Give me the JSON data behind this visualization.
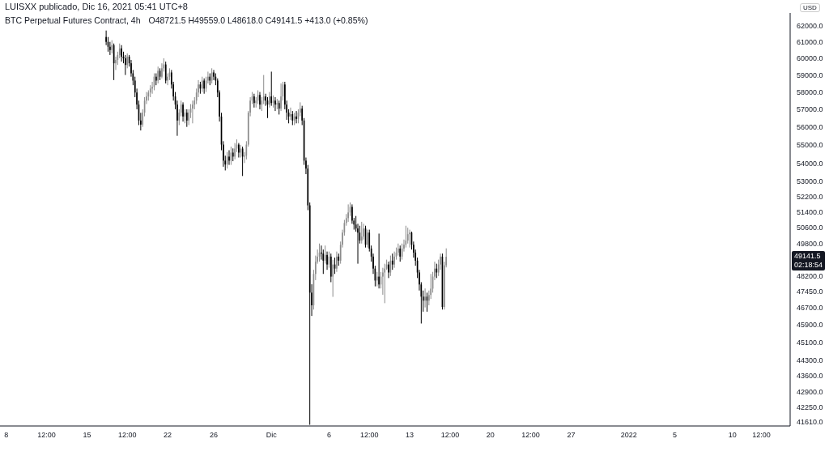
{
  "chart_data": {
    "type": "candlestick",
    "title": "BTC Perpetual Futures Contract, 4h",
    "ylabel": "USD",
    "log": true,
    "annotations": [
      "LUISXX publicado, Dic 16, 2021 05:41 UTC+8",
      "O48721.5 H49559.0 L48618.0 C49141.5 +413.0 (+0.85%)",
      "49141.5",
      "02:18:54"
    ],
    "xlim": [
      "2021-11-07T11:00",
      "2022-01-15T00:00"
    ],
    "xticks": [
      {
        "value": "2021-11-08",
        "label": "8"
      },
      {
        "value": "2021-11-11T12:00",
        "label": "12:00"
      },
      {
        "value": "2021-11-15",
        "label": "15"
      },
      {
        "value": "2021-11-18T12:00",
        "label": "12:00"
      },
      {
        "value": "2021-11-22",
        "label": "22"
      },
      {
        "value": "2021-11-26",
        "label": "26"
      },
      {
        "value": "2021-12-01",
        "label": "Dic"
      },
      {
        "value": "2021-12-06",
        "label": "6"
      },
      {
        "value": "2021-12-09T12:00",
        "label": "12:00"
      },
      {
        "value": "2021-12-13",
        "label": "13"
      },
      {
        "value": "2021-12-16T12:00",
        "label": "12:00"
      },
      {
        "value": "2021-12-20",
        "label": "20"
      },
      {
        "value": "2021-12-23T12:00",
        "label": "12:00"
      },
      {
        "value": "2021-12-27",
        "label": "27"
      },
      {
        "value": "2022-01-01",
        "label": "2022"
      },
      {
        "value": "2022-01-05",
        "label": "5"
      },
      {
        "value": "2022-01-10",
        "label": "10"
      },
      {
        "value": "2022-01-12T12:00",
        "label": "12:00"
      }
    ],
    "ylim": [
      41450,
      62800
    ],
    "yticks": [
      {
        "value": 62000,
        "label": "62000.0"
      },
      {
        "value": 61000,
        "label": "61000.0"
      },
      {
        "value": 60000,
        "label": "60000.0"
      },
      {
        "value": 59000,
        "label": "59000.0"
      },
      {
        "value": 58000,
        "label": "58000.0"
      },
      {
        "value": 57000,
        "label": "57000.0"
      },
      {
        "value": 56000,
        "label": "56000.0"
      },
      {
        "value": 55000,
        "label": "55000.0"
      },
      {
        "value": 54000,
        "label": "54000.0"
      },
      {
        "value": 53000,
        "label": "53000.0"
      },
      {
        "value": 52200,
        "label": "52200.0"
      },
      {
        "value": 51400,
        "label": "51400.0"
      },
      {
        "value": 50600,
        "label": "50600.0"
      },
      {
        "value": 49800,
        "label": "49800.0"
      },
      {
        "value": 48200,
        "label": "48200.0"
      },
      {
        "value": 47450,
        "label": "47450.0"
      },
      {
        "value": 46700,
        "label": "46700.0"
      },
      {
        "value": 45900,
        "label": "45900.0"
      },
      {
        "value": 45100,
        "label": "45100.0"
      },
      {
        "value": 44300,
        "label": "44300.0"
      },
      {
        "value": 43600,
        "label": "43600.0"
      },
      {
        "value": 42900,
        "label": "42900.0"
      },
      {
        "value": 42250,
        "label": "42250.0"
      },
      {
        "value": 41610,
        "label": "41610.0"
      }
    ],
    "series": [
      {
        "color": "#8c8c8c",
        "x": [
          "2021-11-17T04:00",
          "2021-11-17T12:00",
          "2021-11-17T16:00",
          "2021-11-17T20:00",
          "2021-11-18T12:00",
          "2021-11-19T20:00",
          "2021-11-20T00:00",
          "2021-11-20T04:00",
          "2021-11-20T08:00",
          "2021-11-20T12:00",
          "2021-11-20T16:00",
          "2021-11-20T20:00",
          "2021-11-21T04:00",
          "2021-11-21T12:00",
          "2021-11-21T16:00",
          "2021-11-22T00:00",
          "2021-11-22T04:00",
          "2021-11-23T00:00",
          "2021-11-23T04:00",
          "2021-11-23T12:00",
          "2021-11-23T20:00",
          "2021-11-24T00:00",
          "2021-11-24T04:00",
          "2021-11-24T08:00",
          "2021-11-24T12:00",
          "2021-11-24T16:00",
          "2021-11-25T00:00",
          "2021-11-25T08:00",
          "2021-11-25T12:00",
          "2021-11-25T20:00",
          "2021-11-27T04:00",
          "2021-11-27T12:00",
          "2021-11-27T20:00",
          "2021-11-28T00:00",
          "2021-11-28T08:00",
          "2021-11-28T16:00",
          "2021-11-28T20:00",
          "2021-11-29T00:00",
          "2021-11-29T04:00",
          "2021-11-29T08:00",
          "2021-11-29T16:00",
          "2021-11-29T20:00",
          "2021-11-30T04:00",
          "2021-11-30T08:00",
          "2021-11-30T20:00",
          "2021-12-01T04:00",
          "2021-12-01T12:00",
          "2021-12-01T20:00",
          "2021-12-02T00:00",
          "2021-12-02T16:00",
          "2021-12-03T00:00",
          "2021-12-03T08:00",
          "2021-12-03T12:00",
          "2021-12-04T16:00",
          "2021-12-04T20:00",
          "2021-12-05T00:00",
          "2021-12-05T04:00",
          "2021-12-05T16:00",
          "2021-12-06T00:00",
          "2021-12-06T08:00",
          "2021-12-06T16:00",
          "2021-12-07T00:00",
          "2021-12-07T04:00",
          "2021-12-07T08:00",
          "2021-12-07T12:00",
          "2021-12-07T16:00",
          "2021-12-07T20:00",
          "2021-12-08T20:00",
          "2021-12-09T00:00",
          "2021-12-09T08:00",
          "2021-12-10T04:00",
          "2021-12-10T12:00",
          "2021-12-10T16:00",
          "2021-12-10T20:00",
          "2021-12-11T00:00",
          "2021-12-11T08:00",
          "2021-12-11T16:00",
          "2021-12-11T20:00",
          "2021-12-12T00:00",
          "2021-12-12T08:00",
          "2021-12-12T12:00",
          "2021-12-12T16:00",
          "2021-12-12T20:00",
          "2021-12-13T00:00",
          "2021-12-14T08:00",
          "2021-12-14T16:00",
          "2021-12-14T20:00",
          "2021-12-15T00:00",
          "2021-12-15T04:00",
          "2021-12-15T12:00",
          "2021-12-15T16:00",
          "2021-12-16T00:00",
          "2021-12-16T04:00"
        ],
        "ohlc": [
          [
            60500,
            61100,
            60300,
            60800
          ],
          [
            59700,
            60100,
            59300,
            59900
          ],
          [
            59900,
            60400,
            59600,
            60200
          ],
          [
            60200,
            60900,
            60000,
            60600
          ],
          [
            59600,
            60300,
            59400,
            60100
          ],
          [
            56130,
            57000,
            56000,
            56810
          ],
          [
            56810,
            57700,
            56600,
            57500
          ],
          [
            57500,
            58000,
            57300,
            57740
          ],
          [
            57740,
            58100,
            57500,
            57970
          ],
          [
            57970,
            58400,
            57700,
            58200
          ],
          [
            58200,
            58600,
            57900,
            58300
          ],
          [
            58300,
            59100,
            58100,
            58900
          ],
          [
            58670,
            59500,
            58500,
            59250
          ],
          [
            58900,
            59700,
            58800,
            59400
          ],
          [
            59400,
            60000,
            59200,
            59630
          ],
          [
            58670,
            59100,
            58400,
            58900
          ],
          [
            58900,
            59400,
            58700,
            59150
          ],
          [
            56360,
            57000,
            56100,
            56810
          ],
          [
            56810,
            57500,
            56600,
            57270
          ],
          [
            56590,
            57000,
            56200,
            56810
          ],
          [
            56360,
            57000,
            56100,
            56810
          ],
          [
            56810,
            57300,
            56500,
            57040
          ],
          [
            57040,
            57500,
            56200,
            57270
          ],
          [
            57270,
            57700,
            57000,
            57500
          ],
          [
            57500,
            58200,
            57300,
            57970
          ],
          [
            57970,
            58700,
            57700,
            58440
          ],
          [
            58200,
            58900,
            58000,
            58670
          ],
          [
            58200,
            58900,
            58000,
            58670
          ],
          [
            58670,
            59200,
            58500,
            58900
          ],
          [
            58670,
            59400,
            58500,
            59150
          ],
          [
            53920,
            54600,
            53700,
            54350
          ],
          [
            54130,
            54900,
            53900,
            54570
          ],
          [
            54350,
            55100,
            54200,
            54790
          ],
          [
            54790,
            55300,
            54600,
            55010
          ],
          [
            54570,
            55000,
            54300,
            54790
          ],
          [
            54350,
            54600,
            54000,
            54400
          ],
          [
            54400,
            55200,
            54200,
            55010
          ],
          [
            55010,
            56900,
            54900,
            56810
          ],
          [
            56810,
            57700,
            56600,
            57500
          ],
          [
            57500,
            58000,
            57300,
            57740
          ],
          [
            57360,
            57700,
            57100,
            57500
          ],
          [
            57500,
            58100,
            57300,
            57830
          ],
          [
            57270,
            57700,
            56900,
            57500
          ],
          [
            57500,
            59000,
            57300,
            57740
          ],
          [
            57270,
            58000,
            57100,
            57740
          ],
          [
            57360,
            57800,
            57100,
            57500
          ],
          [
            57270,
            57600,
            57000,
            57360
          ],
          [
            57040,
            58500,
            56900,
            57740
          ],
          [
            57740,
            58600,
            57500,
            58440
          ],
          [
            56590,
            57100,
            56400,
            56720
          ],
          [
            56360,
            56800,
            56100,
            56590
          ],
          [
            56450,
            57000,
            56200,
            56810
          ],
          [
            56810,
            57400,
            56600,
            57040
          ],
          [
            46800,
            48500,
            46600,
            48300
          ],
          [
            48300,
            49200,
            48000,
            48900
          ],
          [
            48900,
            49500,
            48800,
            49150
          ],
          [
            49150,
            49800,
            48900,
            49350
          ],
          [
            48950,
            49700,
            48800,
            49230
          ],
          [
            48760,
            49400,
            48600,
            49150
          ],
          [
            48170,
            49000,
            47200,
            48760
          ],
          [
            48560,
            49400,
            48400,
            49150
          ],
          [
            48950,
            49900,
            48800,
            49740
          ],
          [
            49740,
            50500,
            49600,
            50350
          ],
          [
            50350,
            51000,
            50200,
            50840
          ],
          [
            50840,
            51300,
            50700,
            51090
          ],
          [
            51090,
            51800,
            50900,
            51380
          ],
          [
            51380,
            51900,
            51200,
            51670
          ],
          [
            49950,
            50900,
            49800,
            50150
          ],
          [
            50150,
            50800,
            50000,
            50560
          ],
          [
            49740,
            50500,
            49600,
            50350
          ],
          [
            47980,
            48400,
            47700,
            48170
          ],
          [
            47790,
            48400,
            47600,
            48170
          ],
          [
            48170,
            48600,
            47300,
            48370
          ],
          [
            48370,
            48800,
            46900,
            48560
          ],
          [
            48560,
            49000,
            48500,
            48760
          ],
          [
            48370,
            49200,
            48200,
            48950
          ],
          [
            48760,
            49400,
            48600,
            49150
          ],
          [
            49150,
            49600,
            49000,
            49350
          ],
          [
            49350,
            49800,
            49200,
            49550
          ],
          [
            49150,
            49800,
            49000,
            49550
          ],
          [
            49550,
            50000,
            49400,
            49740
          ],
          [
            49740,
            50700,
            49600,
            49950
          ],
          [
            49950,
            50600,
            49800,
            50270
          ],
          [
            50270,
            50500,
            49600,
            50350
          ],
          [
            47020,
            47600,
            46700,
            47210
          ],
          [
            47020,
            47500,
            46800,
            47290
          ],
          [
            47290,
            48300,
            47100,
            47590
          ],
          [
            47590,
            48400,
            47400,
            48170
          ],
          [
            48170,
            48900,
            48000,
            48560
          ],
          [
            48370,
            49000,
            48200,
            48760
          ],
          [
            48760,
            49300,
            48500,
            49150
          ],
          [
            46720,
            48900,
            46600,
            48721.5
          ],
          [
            48721.5,
            49559.0,
            48618.0,
            49141.5
          ]
        ]
      },
      {
        "color": "#000000",
        "x": [
          "2021-11-16T16:00",
          "2021-11-16T20:00",
          "2021-11-17T00:00",
          "2021-11-17T08:00",
          "2021-11-18T00:00",
          "2021-11-18T04:00",
          "2021-11-18T08:00",
          "2021-11-18T16:00",
          "2021-11-18T20:00",
          "2021-11-19T00:00",
          "2021-11-19T04:00",
          "2021-11-19T08:00",
          "2021-11-19T12:00",
          "2021-11-19T16:00",
          "2021-11-21T00:00",
          "2021-11-21T08:00",
          "2021-11-21T20:00",
          "2021-11-22T08:00",
          "2021-11-22T12:00",
          "2021-11-22T16:00",
          "2021-11-22T20:00",
          "2021-11-23T08:00",
          "2021-11-23T16:00",
          "2021-11-24T20:00",
          "2021-11-25T04:00",
          "2021-11-25T16:00",
          "2021-11-26T00:00",
          "2021-11-26T04:00",
          "2021-11-26T08:00",
          "2021-11-26T12:00",
          "2021-11-26T16:00",
          "2021-11-26T20:00",
          "2021-11-27T00:00",
          "2021-11-27T08:00",
          "2021-11-27T16:00",
          "2021-11-28T04:00",
          "2021-11-28T12:00",
          "2021-11-29T12:00",
          "2021-11-30T00:00",
          "2021-11-30T12:00",
          "2021-11-30T16:00",
          "2021-12-01T00:00",
          "2021-12-01T08:00",
          "2021-12-01T16:00",
          "2021-12-02T04:00",
          "2021-12-02T08:00",
          "2021-12-02T12:00",
          "2021-12-02T20:00",
          "2021-12-03T04:00",
          "2021-12-03T16:00",
          "2021-12-03T20:00",
          "2021-12-04T00:00",
          "2021-12-04T04:00",
          "2021-12-04T08:00",
          "2021-12-04T12:00",
          "2021-12-05T08:00",
          "2021-12-05T12:00",
          "2021-12-05T20:00",
          "2021-12-06T04:00",
          "2021-12-06T12:00",
          "2021-12-06T20:00",
          "2021-12-08T00:00",
          "2021-12-08T04:00",
          "2021-12-08T08:00",
          "2021-12-08T12:00",
          "2021-12-08T16:00",
          "2021-12-09T04:00",
          "2021-12-09T12:00",
          "2021-12-09T16:00",
          "2021-12-09T20:00",
          "2021-12-10T00:00",
          "2021-12-10T08:00",
          "2021-12-11T04:00",
          "2021-12-11T12:00",
          "2021-12-12T04:00",
          "2021-12-13T04:00",
          "2021-12-13T08:00",
          "2021-12-13T12:00",
          "2021-12-13T16:00",
          "2021-12-13T20:00",
          "2021-12-14T00:00",
          "2021-12-14T04:00",
          "2021-12-14T12:00",
          "2021-12-15T08:00",
          "2021-12-15T20:00"
        ],
        "ohlc": [
          [
            61300,
            61700,
            60800,
            61000
          ],
          [
            61000,
            61300,
            60400,
            60700
          ],
          [
            60700,
            61000,
            60200,
            60500
          ],
          [
            60800,
            60900,
            58700,
            59700
          ],
          [
            60600,
            60800,
            59800,
            60100
          ],
          [
            60100,
            60400,
            59700,
            60000
          ],
          [
            60000,
            60200,
            59000,
            59600
          ],
          [
            60100,
            60200,
            59500,
            59700
          ],
          [
            59700,
            59900,
            58900,
            59100
          ],
          [
            59100,
            59300,
            58400,
            58670
          ],
          [
            58670,
            58900,
            57700,
            57970
          ],
          [
            57970,
            58200,
            57000,
            57270
          ],
          [
            57270,
            57500,
            56100,
            56360
          ],
          [
            56360,
            56800,
            55800,
            56130
          ],
          [
            58900,
            59100,
            58400,
            58670
          ],
          [
            59250,
            59400,
            58700,
            58900
          ],
          [
            59630,
            59800,
            58500,
            58670
          ],
          [
            59150,
            59300,
            58200,
            58440
          ],
          [
            58440,
            58600,
            57500,
            57740
          ],
          [
            57740,
            58000,
            57000,
            57270
          ],
          [
            57270,
            57500,
            55500,
            56360
          ],
          [
            57270,
            57400,
            56300,
            56590
          ],
          [
            56810,
            57000,
            56000,
            56360
          ],
          [
            58440,
            58600,
            57900,
            58200
          ],
          [
            58670,
            58800,
            57900,
            58200
          ],
          [
            58900,
            59100,
            58400,
            58670
          ],
          [
            59150,
            59300,
            58700,
            58900
          ],
          [
            58900,
            59100,
            58400,
            58670
          ],
          [
            58670,
            58800,
            57700,
            57970
          ],
          [
            57970,
            58100,
            56300,
            56590
          ],
          [
            56590,
            56800,
            54700,
            55010
          ],
          [
            55010,
            55200,
            53800,
            54130
          ],
          [
            54130,
            54400,
            53600,
            53920
          ],
          [
            54350,
            54700,
            53900,
            54130
          ],
          [
            54570,
            54800,
            54100,
            54350
          ],
          [
            55010,
            55100,
            54300,
            54570
          ],
          [
            54790,
            54900,
            53300,
            54350
          ],
          [
            57740,
            57900,
            57100,
            57360
          ],
          [
            57830,
            58000,
            57000,
            57270
          ],
          [
            57740,
            57900,
            57200,
            57500
          ],
          [
            57500,
            57700,
            56500,
            57270
          ],
          [
            57740,
            59200,
            57200,
            57360
          ],
          [
            57500,
            57700,
            56900,
            57270
          ],
          [
            57360,
            57500,
            56700,
            57040
          ],
          [
            58440,
            58600,
            57000,
            57270
          ],
          [
            57270,
            57500,
            56400,
            56810
          ],
          [
            56810,
            57000,
            56200,
            56590
          ],
          [
            56720,
            56900,
            56100,
            56360
          ],
          [
            56590,
            56900,
            56200,
            56450
          ],
          [
            57040,
            57200,
            56100,
            56360
          ],
          [
            56360,
            56500,
            53900,
            54130
          ],
          [
            54130,
            54300,
            53400,
            53700
          ],
          [
            53700,
            53900,
            51500,
            51750
          ],
          [
            51750,
            51900,
            41500,
            47400
          ],
          [
            47400,
            47800,
            46300,
            46800
          ],
          [
            49350,
            49700,
            49000,
            49300
          ],
          [
            49300,
            49500,
            48300,
            48950
          ],
          [
            49230,
            49400,
            48500,
            48760
          ],
          [
            49150,
            49300,
            47900,
            48170
          ],
          [
            48760,
            49100,
            48300,
            48560
          ],
          [
            49150,
            49300,
            48700,
            48950
          ],
          [
            51670,
            51800,
            50800,
            50960
          ],
          [
            50960,
            51100,
            50500,
            50760
          ],
          [
            50760,
            51200,
            50400,
            50560
          ],
          [
            50560,
            50800,
            48800,
            50350
          ],
          [
            50350,
            50700,
            49800,
            49950
          ],
          [
            50560,
            50700,
            49600,
            49740
          ],
          [
            50350,
            50500,
            49400,
            49550
          ],
          [
            49550,
            49700,
            48900,
            49150
          ],
          [
            49150,
            49300,
            48300,
            48560
          ],
          [
            48560,
            48700,
            47700,
            47980
          ],
          [
            48170,
            50300,
            47600,
            47790
          ],
          [
            48760,
            48900,
            48100,
            48370
          ],
          [
            48950,
            49300,
            48500,
            48760
          ],
          [
            49550,
            49700,
            48900,
            49150
          ],
          [
            50350,
            50400,
            49500,
            49740
          ],
          [
            49740,
            49900,
            49100,
            49350
          ],
          [
            49350,
            49500,
            48700,
            48950
          ],
          [
            48950,
            49100,
            48100,
            48370
          ],
          [
            48370,
            48500,
            47500,
            47790
          ],
          [
            47790,
            47900,
            45950,
            47210
          ],
          [
            47210,
            47500,
            46500,
            47020
          ],
          [
            47210,
            47400,
            46500,
            47020
          ],
          [
            48560,
            48800,
            48100,
            48370
          ],
          [
            49150,
            49300,
            46600,
            46720
          ]
        ]
      }
    ]
  }
}
